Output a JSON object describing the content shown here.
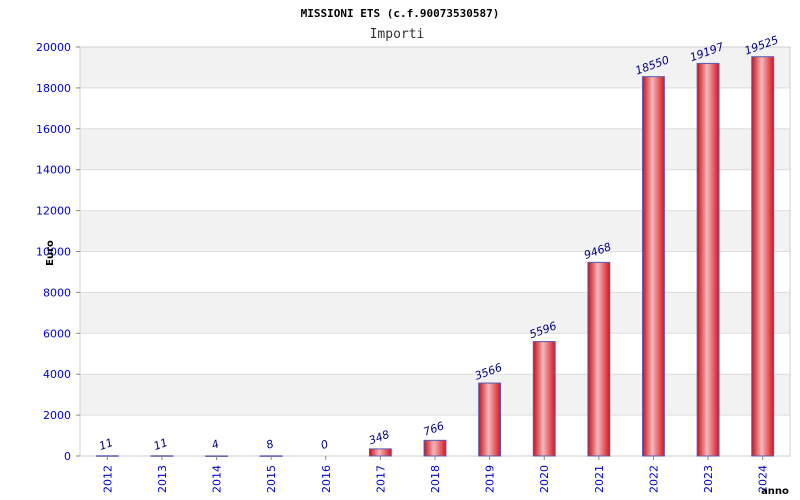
{
  "chart_data": {
    "type": "bar",
    "title": "MISSIONI ETS (c.f.90073530587)",
    "subtitle": "Importi",
    "xlabel": "anno",
    "ylabel": "Euro",
    "ylim": [
      0,
      20000
    ],
    "yticks": [
      0,
      2000,
      4000,
      6000,
      8000,
      10000,
      12000,
      14000,
      16000,
      18000,
      20000
    ],
    "categories": [
      "2012",
      "2013",
      "2014",
      "2015",
      "2016",
      "2017",
      "2018",
      "2019",
      "2020",
      "2021",
      "2022",
      "2023",
      "2024"
    ],
    "values": [
      11,
      11,
      4,
      8,
      0,
      348,
      766,
      3566,
      5596,
      9468,
      18550,
      19197,
      19525
    ],
    "grid": true,
    "colors": {
      "bar": "#e8202a",
      "bar_highlight": "#f4b8bc",
      "bar_edge": "#5a5ab0",
      "band": "#f2f2f2",
      "tick_text": "#0000cc",
      "label_text": "#000080"
    }
  }
}
